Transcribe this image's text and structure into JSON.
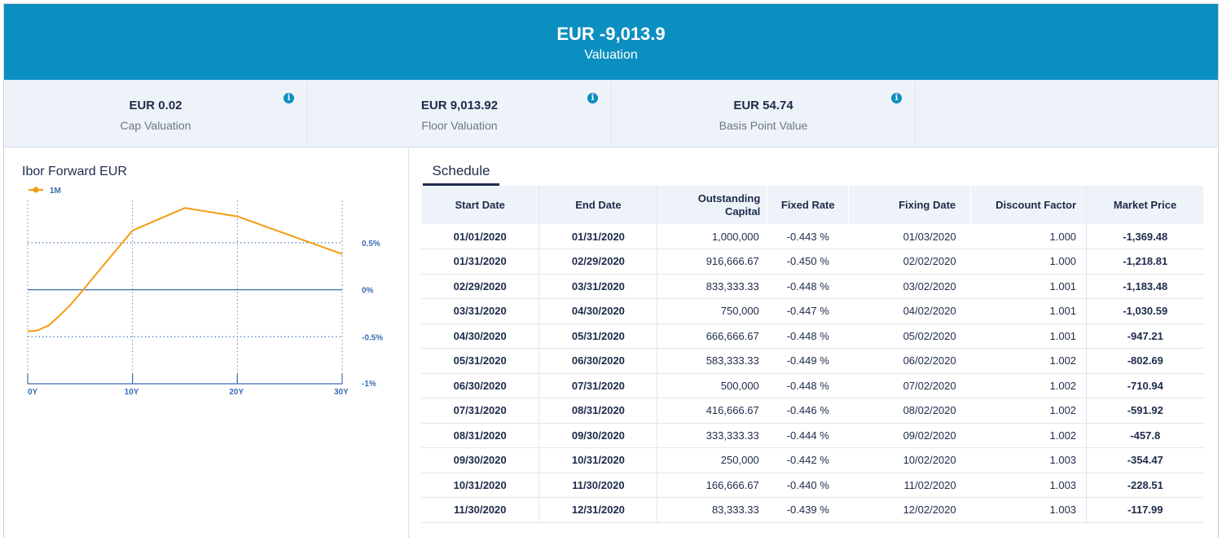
{
  "banner": {
    "amount": "EUR -9,013.9",
    "label": "Valuation"
  },
  "kpis": [
    {
      "value": "EUR 0.02",
      "label": "Cap Valuation"
    },
    {
      "value": "EUR 9,013.92",
      "label": "Floor Valuation"
    },
    {
      "value": "EUR 54.74",
      "label": "Basis Point Value"
    }
  ],
  "info_icon": "i",
  "chart": {
    "title": "Ibor Forward EUR"
  },
  "chart_data": {
    "type": "line",
    "series": [
      {
        "name": "1M",
        "color": "#f39c12",
        "x": [
          0,
          0.5,
          1,
          2,
          3,
          4,
          5,
          7,
          10,
          15,
          20,
          25,
          30
        ],
        "y": [
          -0.44,
          -0.44,
          -0.43,
          -0.38,
          -0.28,
          -0.17,
          -0.04,
          0.23,
          0.63,
          0.87,
          0.78,
          0.58,
          0.38
        ]
      }
    ],
    "x_ticks": [
      "0Y",
      "10Y",
      "20Y",
      "30Y"
    ],
    "x_tick_values": [
      0,
      10,
      20,
      30
    ],
    "y_ticks": [
      "0.5%",
      "0%",
      "-0.5%",
      "-1%"
    ],
    "y_tick_values": [
      0.5,
      0,
      -0.5,
      -1
    ],
    "xlim": [
      0,
      30
    ],
    "ylim": [
      -1,
      0.95
    ],
    "grid": true,
    "legend": "top-left"
  },
  "schedule": {
    "tab_label": "Schedule",
    "headers": [
      "Start Date",
      "End Date",
      "Outstanding Capital",
      "Fixed Rate",
      "Fixing Date",
      "Discount Factor",
      "Market Price"
    ],
    "rows": [
      [
        "01/01/2020",
        "01/31/2020",
        "1,000,000",
        "-0.443 %",
        "01/03/2020",
        "1.000",
        "-1,369.48"
      ],
      [
        "01/31/2020",
        "02/29/2020",
        "916,666.67",
        "-0.450 %",
        "02/02/2020",
        "1.000",
        "-1,218.81"
      ],
      [
        "02/29/2020",
        "03/31/2020",
        "833,333.33",
        "-0.448 %",
        "03/02/2020",
        "1.001",
        "-1,183.48"
      ],
      [
        "03/31/2020",
        "04/30/2020",
        "750,000",
        "-0.447 %",
        "04/02/2020",
        "1.001",
        "-1,030.59"
      ],
      [
        "04/30/2020",
        "05/31/2020",
        "666,666.67",
        "-0.448 %",
        "05/02/2020",
        "1.001",
        "-947.21"
      ],
      [
        "05/31/2020",
        "06/30/2020",
        "583,333.33",
        "-0.449 %",
        "06/02/2020",
        "1.002",
        "-802.69"
      ],
      [
        "06/30/2020",
        "07/31/2020",
        "500,000",
        "-0.448 %",
        "07/02/2020",
        "1.002",
        "-710.94"
      ],
      [
        "07/31/2020",
        "08/31/2020",
        "416,666.67",
        "-0.446 %",
        "08/02/2020",
        "1.002",
        "-591.92"
      ],
      [
        "08/31/2020",
        "09/30/2020",
        "333,333.33",
        "-0.444 %",
        "09/02/2020",
        "1.002",
        "-457.8"
      ],
      [
        "09/30/2020",
        "10/31/2020",
        "250,000",
        "-0.442 %",
        "10/02/2020",
        "1.003",
        "-354.47"
      ],
      [
        "10/31/2020",
        "11/30/2020",
        "166,666.67",
        "-0.440 %",
        "11/02/2020",
        "1.003",
        "-228.51"
      ],
      [
        "11/30/2020",
        "12/31/2020",
        "83,333.33",
        "-0.439 %",
        "12/02/2020",
        "1.003",
        "-117.99"
      ]
    ]
  }
}
